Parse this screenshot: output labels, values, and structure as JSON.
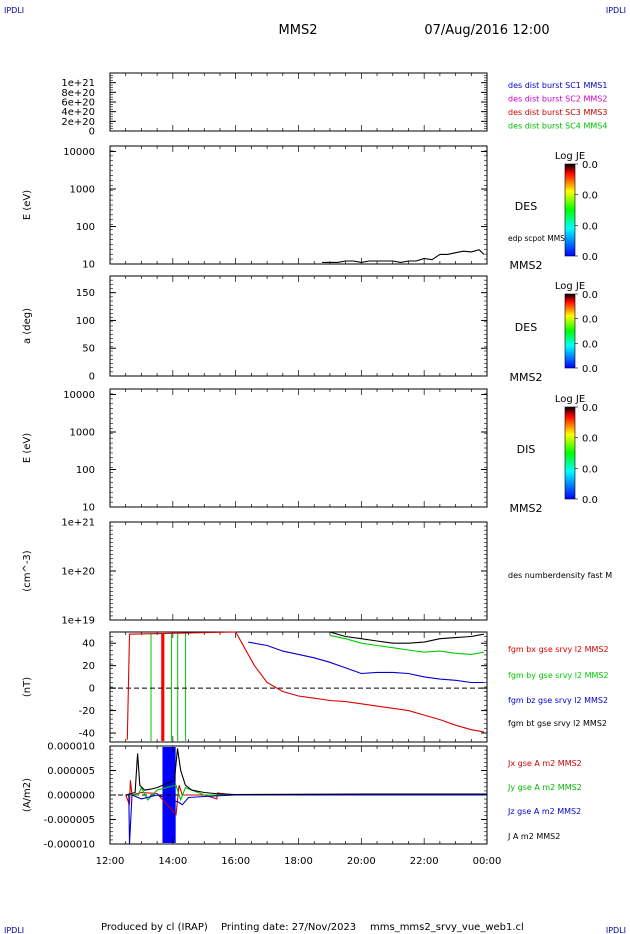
{
  "corner_label": "IPDLI",
  "header": {
    "spacecraft": "MMS2",
    "datetime": "07/Aug/2016 12:00"
  },
  "footer": {
    "produced_by": "Produced by cl (IRAP)",
    "printing_date": "Printing date: 27/Nov/2023",
    "filename": "mms_mms2_srvy_vue_web1.cl"
  },
  "x_axis": {
    "tick_labels": [
      "12:00",
      "14:00",
      "16:00",
      "18:00",
      "20:00",
      "22:00",
      "00:00"
    ]
  },
  "chart_data": [
    {
      "type": "line",
      "id": "panel-1",
      "ylabel": "",
      "ylim": [
        0,
        1.2e+21
      ],
      "y_tick_labels": [
        "0",
        "2e+20",
        "4e+20",
        "6e+20",
        "8e+20",
        "1e+21"
      ],
      "reference_line": 0,
      "legend": [
        {
          "text": "des dist burst SC1 MMS1",
          "color": "#0000cc"
        },
        {
          "text": "des dist burst SC2 MMS2",
          "color": "#cc00cc"
        },
        {
          "text": "des dist burst SC3 MMS3",
          "color": "#cc0000"
        },
        {
          "text": "des dist burst SC4 MMS4",
          "color": "#00bb00"
        }
      ]
    },
    {
      "type": "line",
      "id": "panel-2",
      "ylabel": "E (eV)",
      "scale": "log",
      "ylim": [
        10,
        14000
      ],
      "y_tick_labels": [
        "10",
        "100",
        "1000",
        "10000"
      ],
      "right_label": "DES",
      "bottom_right_label": "MMS2",
      "series_label": "edp scpot MMS2",
      "colorbar": {
        "title": "Log JE",
        "ticks": [
          "0.0",
          "0.0",
          "0.0",
          "0.0"
        ]
      },
      "series": [
        {
          "name": "edp scpot MMS2",
          "color": "#000000",
          "x_hours": [
            18.75,
            19.0,
            19.25,
            19.5,
            19.75,
            20.0,
            20.25,
            20.5,
            20.75,
            21.0,
            21.25,
            21.5,
            21.75,
            22.0,
            22.25,
            22.5,
            22.75,
            23.0,
            23.25,
            23.5,
            23.75,
            23.9
          ],
          "values": [
            11,
            11,
            11,
            12,
            12,
            11,
            12,
            12,
            12,
            12,
            11,
            12,
            12,
            14,
            13,
            18,
            18,
            20,
            22,
            21,
            24,
            18
          ]
        }
      ]
    },
    {
      "type": "heatmap",
      "id": "panel-3",
      "ylabel": "a (deg)",
      "ylim": [
        0,
        180
      ],
      "y_tick_labels": [
        "0",
        "50",
        "100",
        "150"
      ],
      "right_label": "DES",
      "bottom_right_label": "MMS2",
      "colorbar": {
        "title": "Log JE",
        "ticks": [
          "0.0",
          "0.0",
          "0.0",
          "0.0"
        ]
      }
    },
    {
      "type": "heatmap",
      "id": "panel-4",
      "ylabel": "E (eV)",
      "scale": "log",
      "ylim": [
        10,
        14000
      ],
      "y_tick_labels": [
        "10",
        "100",
        "1000",
        "10000"
      ],
      "right_label": "DIS",
      "bottom_right_label": "MMS2",
      "colorbar": {
        "title": "Log JE",
        "ticks": [
          "0.0",
          "0.0",
          "0.0",
          "0.0"
        ]
      }
    },
    {
      "type": "line",
      "id": "panel-5",
      "ylabel": "(cm^-3)",
      "scale": "log",
      "ylim": [
        1e+19,
        1e+21
      ],
      "y_tick_labels": [
        "1e+19",
        "1e+20",
        "1e+21"
      ],
      "series_label": "des numberdensity fast M"
    },
    {
      "type": "line",
      "id": "panel-6",
      "ylabel": "(nT)",
      "ylim": [
        -48,
        50
      ],
      "y_tick_labels": [
        "-40",
        "-20",
        "0",
        "20",
        "40"
      ],
      "reference_line": 0,
      "vertical_bands": [
        {
          "x_hours": 13.68,
          "color": "#ff0000",
          "width_h": 0.1
        },
        {
          "x_hours": 13.3,
          "color": "#00cc00",
          "width_h": 0.02
        },
        {
          "x_hours": 13.95,
          "color": "#00cc00",
          "width_h": 0.02
        },
        {
          "x_hours": 14.15,
          "color": "#00cc00",
          "width_h": 0.02
        },
        {
          "x_hours": 14.4,
          "color": "#00cc00",
          "width_h": 0.02
        }
      ],
      "series": [
        {
          "name": "fgm bx gse srvy l2 MMS2",
          "color": "#dd0000",
          "x_hours": [
            12.55,
            12.62,
            16.0,
            16.3,
            16.6,
            17.0,
            17.5,
            18.0,
            18.5,
            19.0,
            19.5,
            20.0,
            20.5,
            21.0,
            21.5,
            22.0,
            22.5,
            23.0,
            23.5,
            23.9
          ],
          "values": [
            -46,
            48,
            50,
            35,
            20,
            5,
            -3,
            -7,
            -9,
            -11,
            -12,
            -14,
            -16,
            -18,
            -20,
            -24,
            -28,
            -33,
            -37,
            -39
          ]
        },
        {
          "name": "fgm by gse srvy l2 MMS2",
          "color": "#00cc00",
          "x_hours": [
            19.0,
            19.5,
            20.0,
            20.5,
            21.0,
            21.5,
            22.0,
            22.5,
            23.0,
            23.5,
            23.9
          ],
          "values": [
            47,
            44,
            40,
            38,
            36,
            34,
            32,
            33,
            31,
            30,
            32
          ]
        },
        {
          "name": "fgm bz gse srvy l2 MMS2",
          "color": "#0000cc",
          "x_hours": [
            16.4,
            17.0,
            17.5,
            18.0,
            18.5,
            19.0,
            19.5,
            20.0,
            20.5,
            21.0,
            21.5,
            22.0,
            22.5,
            23.0,
            23.5,
            23.9
          ],
          "values": [
            41,
            38,
            33,
            30,
            27,
            23,
            18,
            13,
            14,
            14,
            13,
            10,
            8,
            7,
            5,
            5
          ]
        },
        {
          "name": "fgm bt gse srvy l2 MMS2",
          "color": "#000000",
          "x_hours": [
            19.0,
            19.5,
            20.0,
            20.5,
            21.0,
            21.5,
            22.0,
            22.5,
            23.0,
            23.5,
            23.9
          ],
          "values": [
            50,
            46,
            44,
            42,
            40,
            40,
            41,
            44,
            45,
            46,
            48
          ]
        }
      ]
    },
    {
      "type": "line",
      "id": "panel-7",
      "ylabel": "(A/m2)",
      "ylim": [
        -1e-05,
        1e-05
      ],
      "y_tick_labels": [
        "-0.000010",
        "-0.000005",
        "0.000000",
        "0.000005",
        "0.000010"
      ],
      "reference_line": 0,
      "vertical_bands": [
        {
          "x_hours": 13.88,
          "color": "#0000ff",
          "width_h": 0.42
        }
      ],
      "series": [
        {
          "name": "Jx gse A m2 MMS2",
          "color": "#cc0000",
          "x_hours": [
            12.5,
            12.62,
            12.65,
            12.7,
            13.0,
            13.5,
            14.1,
            14.2,
            14.3,
            15.0,
            15.4,
            15.42,
            16.0,
            24.0
          ],
          "values": [
            0,
            -2e-06,
            3e-06,
            0,
            5e-07,
            3e-07,
            -4e-06,
            2e-06,
            0,
            0,
            -8e-07,
            4e-07,
            0,
            0
          ]
        },
        {
          "name": "Jy gse A m2 MMS2",
          "color": "#00bb00",
          "x_hours": [
            12.5,
            12.9,
            13.0,
            13.2,
            13.5,
            14.1,
            14.25,
            14.4,
            15.0,
            16.0,
            24.0
          ],
          "values": [
            0,
            0,
            1.5e-06,
            -1e-06,
            1e-06,
            2e-06,
            -1e-06,
            1.5e-06,
            0,
            0,
            0
          ]
        },
        {
          "name": "Jz gse A m2 MMS2",
          "color": "#0000cc",
          "x_hours": [
            12.5,
            12.6,
            12.62,
            12.7,
            13.0,
            13.5,
            14.2,
            14.3,
            14.5,
            15.0,
            16.0,
            24.0
          ],
          "values": [
            0,
            0,
            -1e-05,
            0,
            -8e-07,
            0,
            -1.5e-06,
            -2e-06,
            -5e-07,
            -3e-07,
            0,
            0
          ]
        },
        {
          "name": "J A m2 MMS2",
          "color": "#000000",
          "x_hours": [
            12.5,
            12.8,
            12.88,
            12.95,
            13.1,
            13.3,
            13.5,
            14.05,
            14.15,
            14.25,
            14.4,
            14.6,
            15.0,
            15.5,
            16.0,
            20.0,
            24.0
          ],
          "values": [
            0,
            5e-07,
            8.5e-06,
            2e-06,
            1e-06,
            1.2e-06,
            1.5e-06,
            3e-06,
            9.5e-06,
            5e-06,
            2e-06,
            1e-06,
            5e-07,
            2e-07,
            1e-07,
            2e-07,
            2e-07
          ]
        }
      ]
    }
  ],
  "colors": {
    "frame": "#000000",
    "corner_label": "#0000aa",
    "colorbar_stops": [
      "#0000ff",
      "#00ffff",
      "#00ff00",
      "#ffff00",
      "#ff0000",
      "#000000"
    ]
  }
}
